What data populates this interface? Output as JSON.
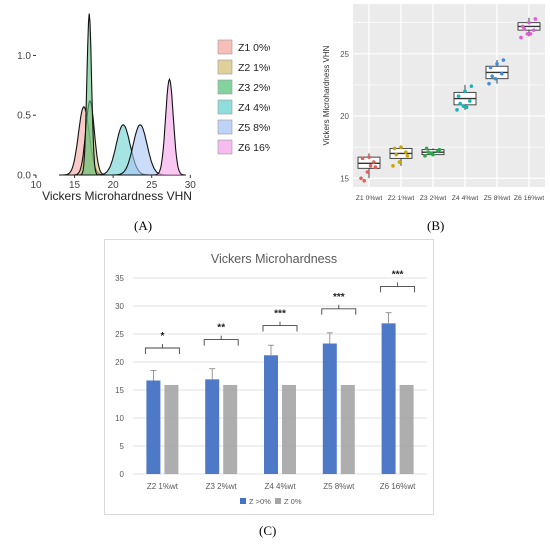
{
  "panel_labels": {
    "a": "(A)",
    "b": "(B)",
    "c": "(C)"
  },
  "colors": {
    "z1": "#f4a9a3",
    "z2": "#d6c27a",
    "z3": "#59c47f",
    "z4": "#69d2d0",
    "z5": "#a9c4f5",
    "z6": "#f3a4ea",
    "bar_primary": "#4472c4",
    "bar_secondary": "#a5a5a5",
    "bracket": "#444444",
    "grid": "#d9d9d9",
    "panel_b_bg": "#ebebeb"
  },
  "chart_data": [
    {
      "type": "area",
      "panel": "A",
      "title": "",
      "xlabel": "Vickers Microhardness VHN",
      "ylabel": "",
      "xlim": [
        10,
        31
      ],
      "ylim": [
        0,
        1.38
      ],
      "x_ticks": [
        10,
        15,
        20,
        25,
        30
      ],
      "y_ticks": [
        0.0,
        0.5,
        1.0
      ],
      "x_tick_labels": [
        "10",
        "15",
        "20",
        "25",
        "30"
      ],
      "y_tick_labels": [
        "0.0",
        "0.5",
        "1.0"
      ],
      "legend_position": "right",
      "series": [
        {
          "name": "Z1 0%wt",
          "mean": 16.2,
          "sd": 0.7,
          "peak": 0.57
        },
        {
          "name": "Z2 1%wt",
          "mean": 17.0,
          "sd": 0.55,
          "peak": 0.62
        },
        {
          "name": "Z3 2%wt",
          "mean": 16.9,
          "sd": 0.3,
          "peak": 1.35
        },
        {
          "name": "Z4 4%wt",
          "mean": 21.3,
          "sd": 0.9,
          "peak": 0.42
        },
        {
          "name": "Z5 8%wt",
          "mean": 23.5,
          "sd": 0.9,
          "peak": 0.42
        },
        {
          "name": "Z6 16%wt",
          "mean": 27.3,
          "sd": 0.5,
          "peak": 0.8
        }
      ]
    },
    {
      "type": "scatter",
      "subtype": "boxplot",
      "panel": "B",
      "title": "",
      "xlabel": "",
      "ylabel": "Vickers Microhardness VHN",
      "ylim": [
        14.3,
        29
      ],
      "y_ticks": [
        15,
        20,
        25
      ],
      "y_tick_labels": [
        "15",
        "20",
        "25"
      ],
      "grid": true,
      "categories": [
        "Z1 0%wt",
        "Z2 1%wt",
        "Z3 2%wt",
        "Z4 4%wt",
        "Z5 8%wt",
        "Z6 16%wt"
      ],
      "boxes": [
        {
          "min": 15.0,
          "q1": 15.8,
          "median": 16.2,
          "q3": 16.7,
          "max": 17.0
        },
        {
          "min": 16.0,
          "q1": 16.6,
          "median": 17.0,
          "q3": 17.4,
          "max": 17.6
        },
        {
          "min": 16.8,
          "q1": 16.9,
          "median": 17.1,
          "q3": 17.3,
          "max": 17.4
        },
        {
          "min": 20.5,
          "q1": 20.9,
          "median": 21.4,
          "q3": 21.9,
          "max": 22.5
        },
        {
          "min": 22.6,
          "q1": 23.0,
          "median": 23.5,
          "q3": 24.0,
          "max": 24.5
        },
        {
          "min": 26.4,
          "q1": 26.9,
          "median": 27.2,
          "q3": 27.5,
          "max": 27.9
        }
      ],
      "points": [
        [
          15.0,
          15.5,
          16.3,
          16.6,
          16.7,
          15.9,
          14.8,
          16.0
        ],
        [
          16.0,
          16.3,
          17.1,
          17.4,
          17.5,
          16.8,
          16.9
        ],
        [
          16.8,
          17.0,
          17.2,
          17.4,
          16.9,
          17.3,
          17.1
        ],
        [
          20.5,
          20.8,
          21.2,
          21.6,
          22.0,
          22.4,
          21.0,
          20.7
        ],
        [
          22.6,
          23.0,
          23.4,
          23.9,
          24.2,
          24.5,
          23.2
        ],
        [
          26.3,
          26.6,
          26.9,
          27.2,
          27.5,
          27.8,
          27.0,
          26.6
        ]
      ]
    },
    {
      "type": "bar",
      "panel": "C",
      "title": "Vickers Microhardness",
      "xlabel": "",
      "ylabel": "",
      "ylim": [
        0,
        35
      ],
      "y_ticks": [
        0,
        5,
        10,
        15,
        20,
        25,
        30,
        35
      ],
      "y_tick_labels": [
        "0",
        "5",
        "10",
        "15",
        "20",
        "25",
        "30",
        "35"
      ],
      "grid": true,
      "legend_position": "bottom",
      "categories": [
        "Z2 1%wt",
        "Z3 2%wt",
        "Z4 4%wt",
        "Z5 8%wt",
        "Z6 16%wt"
      ],
      "series": [
        {
          "name": "Z >0%",
          "values": [
            16.7,
            16.9,
            21.2,
            23.3,
            26.9
          ],
          "errors": [
            1.8,
            1.9,
            1.8,
            1.9,
            1.9
          ]
        },
        {
          "name": "Z 0%",
          "values": [
            15.9,
            15.9,
            15.9,
            15.9,
            15.9
          ],
          "errors": [
            0,
            0,
            0,
            0,
            0
          ]
        }
      ],
      "significance": [
        "*",
        "**",
        "***",
        "***",
        "***"
      ],
      "bracket_y": [
        22.5,
        24,
        26.5,
        29.5,
        33.5
      ]
    }
  ]
}
